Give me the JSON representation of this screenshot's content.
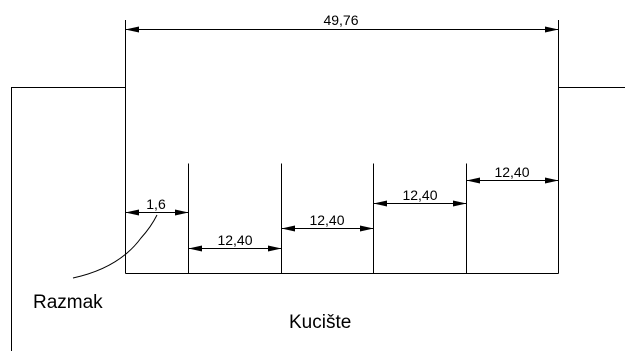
{
  "drawing": {
    "overall_dimension": "49,76",
    "gap_dimension": "1,6",
    "slot_dimensions": [
      "12,40",
      "12,40",
      "12,40",
      "12,40"
    ],
    "leader_label": "Razmak",
    "housing_label": "Kucište",
    "line_color": "#000000",
    "background_color": "#ffffff"
  }
}
